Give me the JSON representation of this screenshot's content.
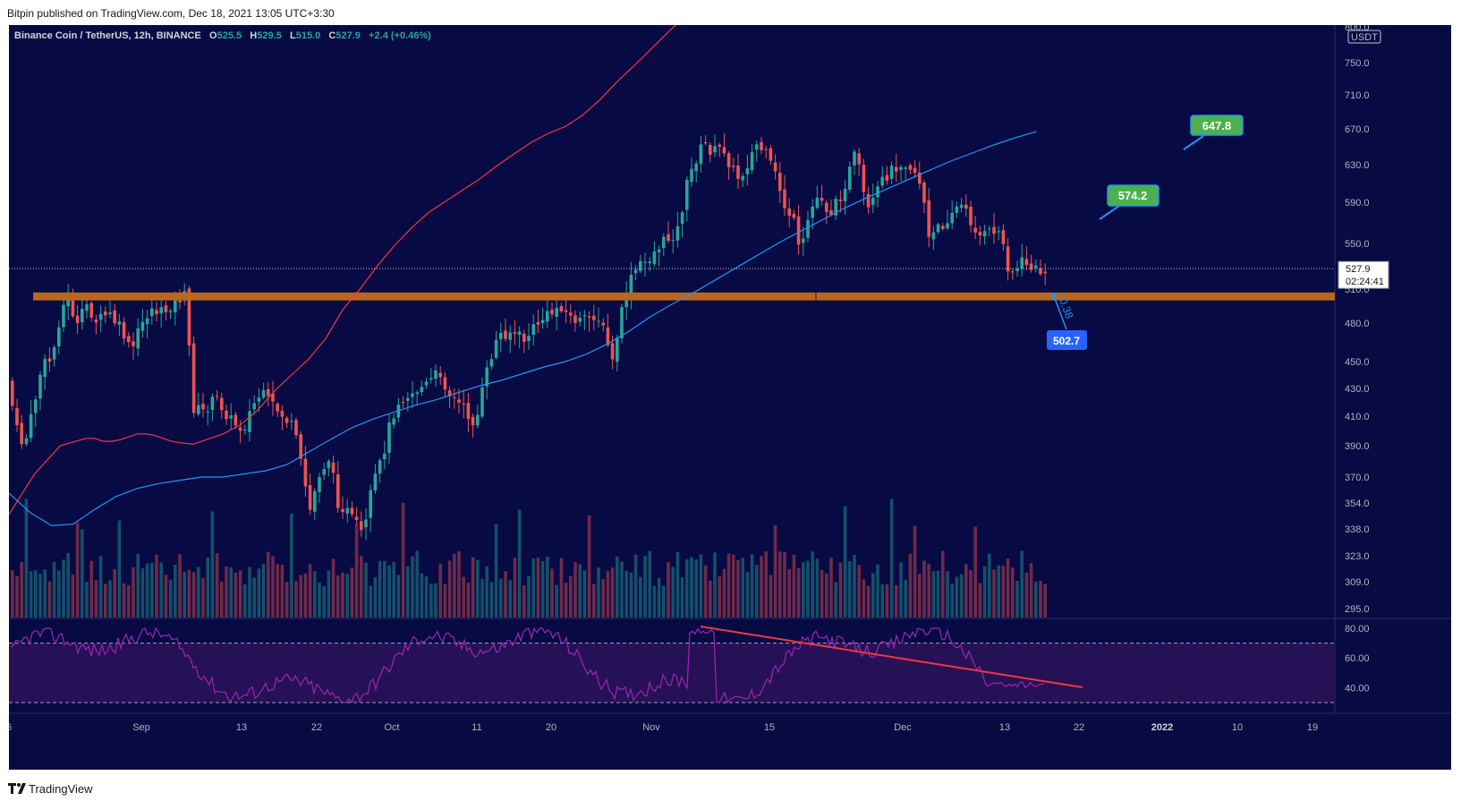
{
  "header": {
    "published": "Bitpin published on TradingView.com, Dec 18, 2021 13:05 UTC+3:30"
  },
  "legend": {
    "symbol": "Binance Coin / TetherUS, 12h, BINANCE",
    "o_label": "O",
    "o": "525.5",
    "h_label": "H",
    "h": "529.5",
    "l_label": "L",
    "l": "515.0",
    "c_label": "C",
    "c": "527.9",
    "change": "+2.4 (+0.46%)"
  },
  "price_axis": {
    "currency": "USDT",
    "top_partial": "800.0",
    "ticks": [
      "750.0",
      "710.0",
      "670.0",
      "630.0",
      "590.0",
      "550.0",
      "510.0",
      "480.0",
      "450.0",
      "430.0",
      "410.0",
      "390.0",
      "370.0",
      "354.0",
      "338.0",
      "323.0",
      "309.0",
      "295.0"
    ],
    "last_price": "527.9",
    "countdown": "02:24:41"
  },
  "rsi_axis": {
    "ticks": [
      "80.00",
      "60.00",
      "40.00"
    ]
  },
  "time_axis": {
    "labels": [
      "6",
      "Sep",
      "13",
      "22",
      "Oct",
      "11",
      "20",
      "Nov",
      "15",
      "Dec",
      "13",
      "22",
      "2022",
      "10",
      "19"
    ],
    "bold_label": "2022"
  },
  "annotations": {
    "target_1": "647.8",
    "target_2": "574.2",
    "support_label": "502.7",
    "fib_text": "0.38"
  },
  "colors": {
    "background": "#070a43",
    "up": "#26a69a",
    "down": "#ef5350",
    "ma_red": "#f23645",
    "ma_blue": "#2196f3",
    "support_band": "#b8681e",
    "rsi_line": "#9c27b0",
    "trendline": "#f23645",
    "label_green": "#4caf50",
    "label_blue": "#2962ff"
  },
  "chart_data": {
    "type": "candlestick",
    "symbol": "Binance Coin / TetherUS",
    "timeframe": "12h",
    "exchange": "BINANCE",
    "last": {
      "open": 525.5,
      "high": 529.5,
      "low": 515.0,
      "close": 527.9,
      "change": 2.4,
      "change_pct": 0.46
    },
    "price_range": [
      285,
      800
    ],
    "support_zone": [
      500,
      507
    ],
    "moving_averages": [
      {
        "color": "red",
        "points": [
          [
            0,
            347
          ],
          [
            60,
            372
          ],
          [
            120,
            390
          ],
          [
            180,
            395
          ],
          [
            200,
            395
          ],
          [
            220,
            393
          ],
          [
            240,
            393
          ],
          [
            260,
            394
          ],
          [
            280,
            396
          ],
          [
            300,
            398
          ],
          [
            320,
            398
          ],
          [
            340,
            397
          ],
          [
            360,
            395
          ],
          [
            380,
            393
          ],
          [
            400,
            392
          ],
          [
            430,
            391
          ],
          [
            460,
            394
          ],
          [
            500,
            398
          ],
          [
            540,
            404
          ],
          [
            580,
            414
          ],
          [
            620,
            428
          ],
          [
            660,
            440
          ],
          [
            700,
            452
          ],
          [
            740,
            468
          ],
          [
            780,
            492
          ],
          [
            820,
            510
          ],
          [
            860,
            530
          ],
          [
            900,
            548
          ],
          [
            940,
            565
          ],
          [
            980,
            580
          ],
          [
            1020,
            591
          ],
          [
            1060,
            603
          ],
          [
            1100,
            615
          ],
          [
            1140,
            629
          ],
          [
            1180,
            642
          ],
          [
            1220,
            655
          ],
          [
            1260,
            665
          ],
          [
            1300,
            673
          ],
          [
            1340,
            686
          ],
          [
            1380,
            704
          ],
          [
            1420,
            726
          ],
          [
            1460,
            746
          ],
          [
            1500,
            767
          ],
          [
            1540,
            788
          ],
          [
            1580,
            808
          ],
          [
            1620,
            826
          ],
          [
            1660,
            848
          ],
          [
            1700,
            866
          ],
          [
            1740,
            881
          ],
          [
            1780,
            900
          ],
          [
            1820,
            920
          ],
          [
            1860,
            940
          ],
          [
            1900,
            955
          ],
          [
            1940,
            968
          ],
          [
            1980,
            982
          ],
          [
            2020,
            992
          ],
          [
            2060,
            1003
          ],
          [
            2100,
            1014
          ],
          [
            2140,
            1024
          ],
          [
            2180,
            1034
          ],
          [
            2220,
            1045
          ],
          [
            2260,
            1058
          ],
          [
            2300,
            1073
          ],
          [
            2340,
            1092
          ],
          [
            2380,
            1108
          ],
          [
            2420,
            1124
          ]
        ]
      },
      {
        "color": "blue",
        "points": [
          [
            0,
            360
          ],
          [
            50,
            348
          ],
          [
            100,
            340
          ],
          [
            150,
            341
          ],
          [
            200,
            350
          ],
          [
            250,
            358
          ],
          [
            300,
            363
          ],
          [
            350,
            366
          ],
          [
            400,
            368
          ],
          [
            450,
            370
          ],
          [
            500,
            370
          ],
          [
            550,
            372
          ],
          [
            600,
            374
          ],
          [
            650,
            378
          ],
          [
            700,
            386
          ],
          [
            750,
            394
          ],
          [
            800,
            402
          ],
          [
            850,
            408
          ],
          [
            900,
            413
          ],
          [
            950,
            418
          ],
          [
            1000,
            422
          ],
          [
            1050,
            427
          ],
          [
            1100,
            432
          ],
          [
            1150,
            436
          ],
          [
            1200,
            441
          ],
          [
            1250,
            446
          ],
          [
            1300,
            450
          ],
          [
            1350,
            456
          ],
          [
            1400,
            464
          ],
          [
            1450,
            474
          ],
          [
            1500,
            486
          ],
          [
            1550,
            497
          ],
          [
            1600,
            507
          ],
          [
            1650,
            518
          ],
          [
            1700,
            529
          ],
          [
            1750,
            540
          ],
          [
            1800,
            551
          ],
          [
            1850,
            562
          ],
          [
            1900,
            573
          ],
          [
            1950,
            584
          ],
          [
            2000,
            594
          ],
          [
            2050,
            604
          ],
          [
            2100,
            614
          ],
          [
            2150,
            624
          ],
          [
            2200,
            634
          ],
          [
            2250,
            643
          ],
          [
            2300,
            652
          ],
          [
            2350,
            660
          ],
          [
            2400,
            667
          ]
        ]
      }
    ],
    "price_targets": [
      647.8,
      574.2
    ],
    "support_level": 502.7,
    "rsi": {
      "levels": [
        70,
        30
      ],
      "ticks": [
        80,
        60,
        40
      ],
      "range": [
        24,
        86
      ]
    },
    "time_labels": [
      "6",
      "Sep",
      "13",
      "22",
      "Oct",
      "11",
      "20",
      "Nov",
      "15",
      "Dec",
      "13",
      "22",
      "2022",
      "10",
      "19"
    ]
  }
}
